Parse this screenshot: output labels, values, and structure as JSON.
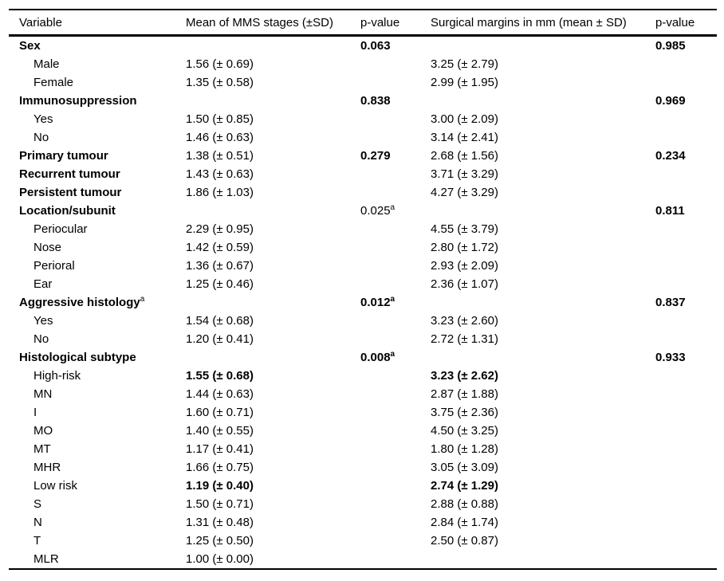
{
  "table": {
    "columns": [
      "Variable",
      "Mean of MMS stages (±SD)",
      "p-value",
      "Surgical margins in mm (mean ± SD)",
      "p-value"
    ],
    "rows": [
      {
        "variable": "Sex",
        "variable_bold": true,
        "p1": "0.063",
        "p1_bold": true,
        "p2": "0.985",
        "p2_bold": true
      },
      {
        "variable": "Male",
        "indent": true,
        "mms": "1.56 (± 0.69)",
        "margins": "3.25 (± 2.79)"
      },
      {
        "variable": "Female",
        "indent": true,
        "mms": "1.35 (± 0.58)",
        "margins": "2.99 (± 1.95)"
      },
      {
        "variable": "Immunosuppression",
        "variable_bold": true,
        "p1": "0.838",
        "p1_bold": true,
        "p2": "0.969",
        "p2_bold": true
      },
      {
        "variable": "Yes",
        "indent": true,
        "mms": "1.50 (± 0.85)",
        "margins": "3.00 (± 2.09)"
      },
      {
        "variable": "No",
        "indent": true,
        "mms": "1.46 (± 0.63)",
        "margins": "3.14 (± 2.41)"
      },
      {
        "variable": "Primary tumour",
        "variable_bold": true,
        "mms": "1.38 (± 0.51)",
        "p1": "0.279",
        "p1_bold": true,
        "margins": "2.68 (± 1.56)",
        "p2": "0.234",
        "p2_bold": true
      },
      {
        "variable": "Recurrent tumour",
        "variable_bold": true,
        "mms": "1.43 (± 0.63)",
        "margins": "3.71 (± 3.29)"
      },
      {
        "variable": "Persistent tumour",
        "variable_bold": true,
        "mms": "1.86 (± 1.03)",
        "margins": "4.27 (± 3.29)"
      },
      {
        "variable": "Location/subunit",
        "variable_bold": true,
        "p1": "0.025",
        "p1_sup": "a",
        "p1_bold": false,
        "p2": "0.811",
        "p2_bold": true
      },
      {
        "variable": "Periocular",
        "indent": true,
        "mms": "2.29 (± 0.95)",
        "margins": "4.55 (± 3.79)"
      },
      {
        "variable": "Nose",
        "indent": true,
        "mms": "1.42 (± 0.59)",
        "margins": "2.80 (± 1.72)"
      },
      {
        "variable": "Perioral",
        "indent": true,
        "mms": "1.36 (± 0.67)",
        "margins": "2.93 (± 2.09)"
      },
      {
        "variable": "Ear",
        "indent": true,
        "mms": "1.25 (± 0.46)",
        "margins": "2.36 (± 1.07)"
      },
      {
        "variable": "Aggressive histology",
        "variable_sup": "a",
        "variable_bold": true,
        "p1": "0.012",
        "p1_sup": "a",
        "p1_bold": true,
        "p2": "0.837",
        "p2_bold": true
      },
      {
        "variable": "Yes",
        "indent": true,
        "mms": "1.54 (± 0.68)",
        "margins": "3.23 (± 2.60)"
      },
      {
        "variable": "No",
        "indent": true,
        "mms": "1.20 (± 0.41)",
        "margins": "2.72 (± 1.31)"
      },
      {
        "variable": "Histological subtype",
        "variable_bold": true,
        "p1": "0.008",
        "p1_sup": "a",
        "p1_bold": true,
        "p2": "0.933",
        "p2_bold": true
      },
      {
        "variable": "High-risk",
        "indent": true,
        "mms": "1.55 (± 0.68)",
        "mms_bold": true,
        "margins": "3.23 (± 2.62)",
        "margins_bold": true
      },
      {
        "variable": "MN",
        "indent": true,
        "mms": "1.44 (± 0.63)",
        "margins": "2.87 (± 1.88)"
      },
      {
        "variable": "I",
        "indent": true,
        "mms": "1.60 (± 0.71)",
        "margins": "3.75 (± 2.36)"
      },
      {
        "variable": "MO",
        "indent": true,
        "mms": "1.40 (± 0.55)",
        "margins": "4.50 (± 3.25)"
      },
      {
        "variable": "MT",
        "indent": true,
        "mms": "1.17 (± 0.41)",
        "margins": "1.80 (± 1.28)"
      },
      {
        "variable": "MHR",
        "indent": true,
        "mms": "1.66 (± 0.75)",
        "margins": "3.05 (± 3.09)"
      },
      {
        "variable": "Low risk",
        "indent": true,
        "mms": "1.19 (± 0.40)",
        "mms_bold": true,
        "margins": "2.74 (± 1.29)",
        "margins_bold": true
      },
      {
        "variable": "S",
        "indent": true,
        "mms": "1.50 (± 0.71)",
        "margins": "2.88 (± 0.88)"
      },
      {
        "variable": "N",
        "indent": true,
        "mms": "1.31 (± 0.48)",
        "margins": "2.84 (± 1.74)"
      },
      {
        "variable": "T",
        "indent": true,
        "mms": "1.25 (± 0.50)",
        "margins": "2.50 (± 0.87)"
      },
      {
        "variable": "MLR",
        "indent": true,
        "mms": "1.00 (± 0.00)"
      }
    ]
  }
}
